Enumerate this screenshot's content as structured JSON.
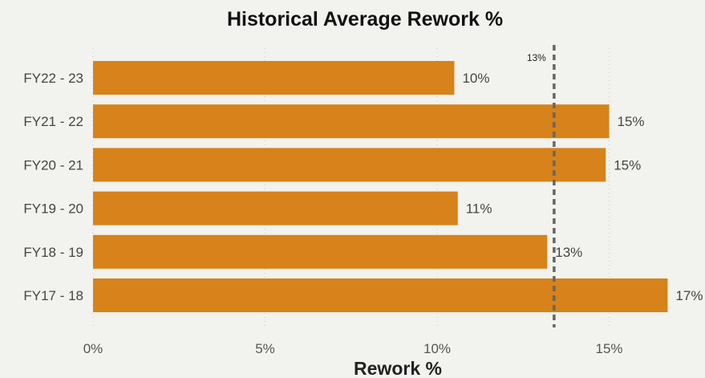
{
  "chart_data": {
    "type": "bar",
    "orientation": "horizontal",
    "title": "Historical Average Rework %",
    "xlabel": "Rework %",
    "ylabel": "",
    "categories": [
      "FY22 - 23",
      "FY21 - 22",
      "FY20 - 21",
      "FY19 - 20",
      "FY18 - 19",
      "FY17 - 18"
    ],
    "values": [
      10.5,
      15.0,
      14.9,
      10.6,
      13.2,
      16.7
    ],
    "data_labels": [
      "10%",
      "15%",
      "15%",
      "11%",
      "13%",
      "17%"
    ],
    "xlim": [
      0,
      17.5
    ],
    "xticks": [
      0,
      5,
      10,
      15
    ],
    "xtick_labels": [
      "0%",
      "5%",
      "10%",
      "15%"
    ],
    "grid": "vertical dotted",
    "bar_color": "#d7821a",
    "reference_line": {
      "value": 13.4,
      "label": "13%",
      "style": "dashed",
      "color": "#666666"
    }
  }
}
